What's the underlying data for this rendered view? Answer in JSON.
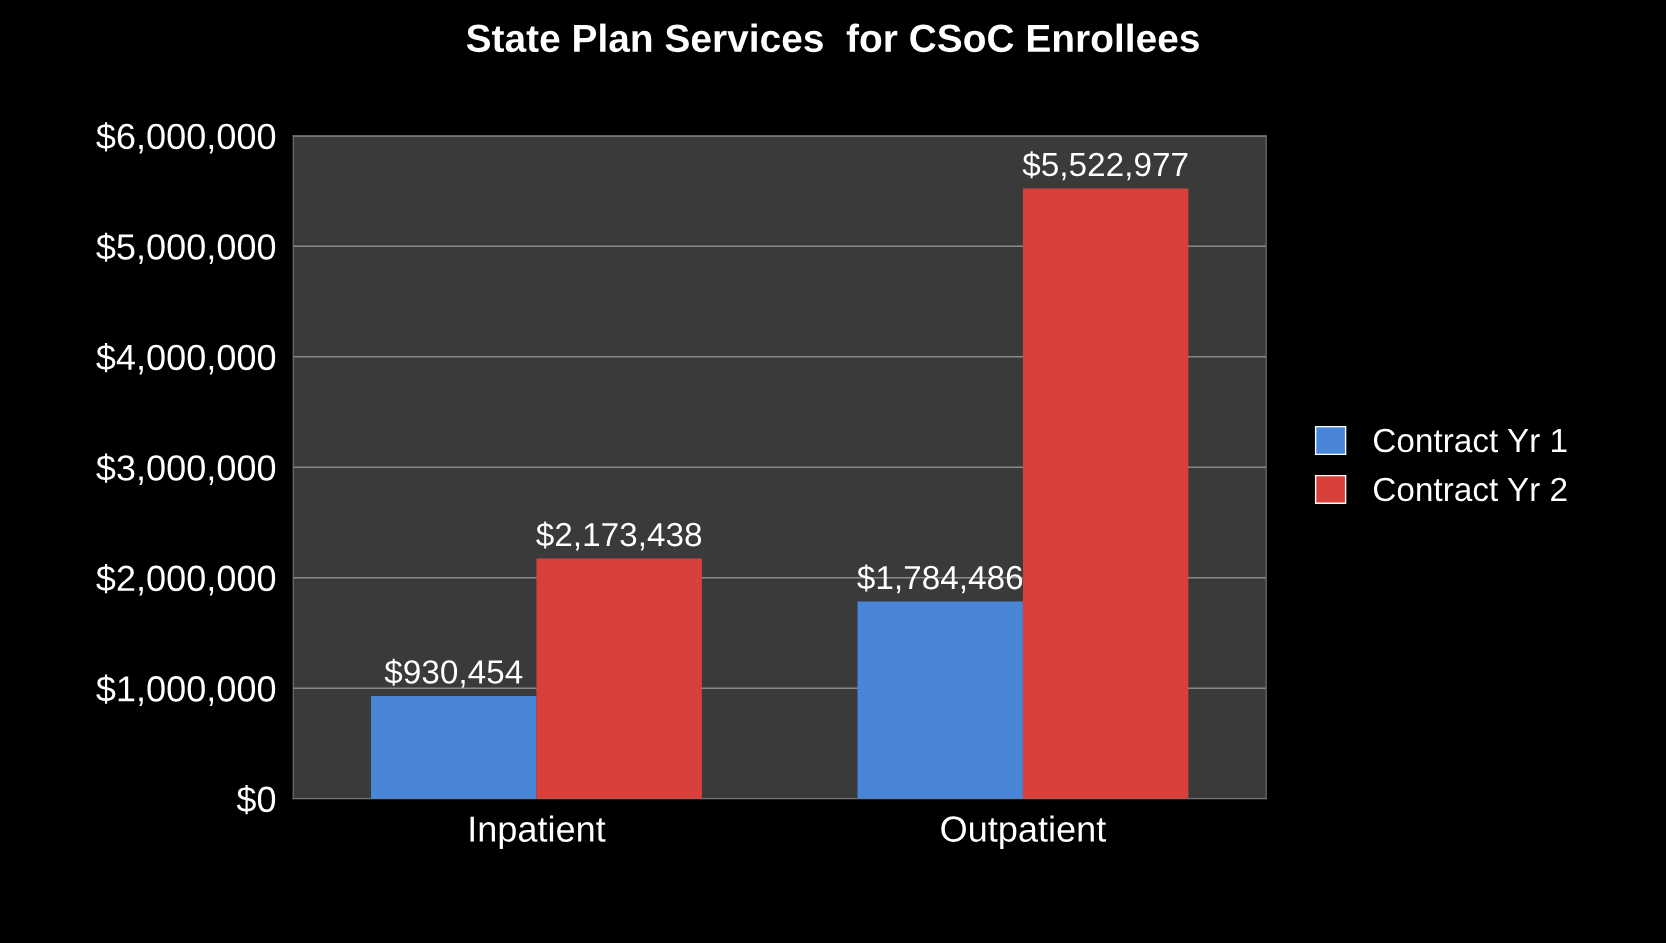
{
  "chart_data": {
    "type": "bar",
    "title": "State Plan Services  for CSoC Enrollees",
    "categories": [
      "Inpatient",
      "Outpatient"
    ],
    "series": [
      {
        "name": "Contract Yr 1",
        "color": "#4a86d8",
        "values": [
          930454,
          1784486
        ],
        "value_labels": [
          "$930,454",
          "$1,784,486"
        ]
      },
      {
        "name": "Contract Yr 2",
        "color": "#d9403c",
        "values": [
          2173438,
          5522977
        ],
        "value_labels": [
          "$2,173,438",
          "$5,522,977"
        ]
      }
    ],
    "ylim": [
      0,
      6000000
    ],
    "yticks": [
      {
        "value": 0,
        "label": "$0"
      },
      {
        "value": 1000000,
        "label": "$1,000,000"
      },
      {
        "value": 2000000,
        "label": "$2,000,000"
      },
      {
        "value": 3000000,
        "label": "$3,000,000"
      },
      {
        "value": 4000000,
        "label": "$4,000,000"
      },
      {
        "value": 5000000,
        "label": "$5,000,000"
      },
      {
        "value": 6000000,
        "label": "$6,000,000"
      }
    ],
    "grid": "y",
    "legend": "right"
  }
}
